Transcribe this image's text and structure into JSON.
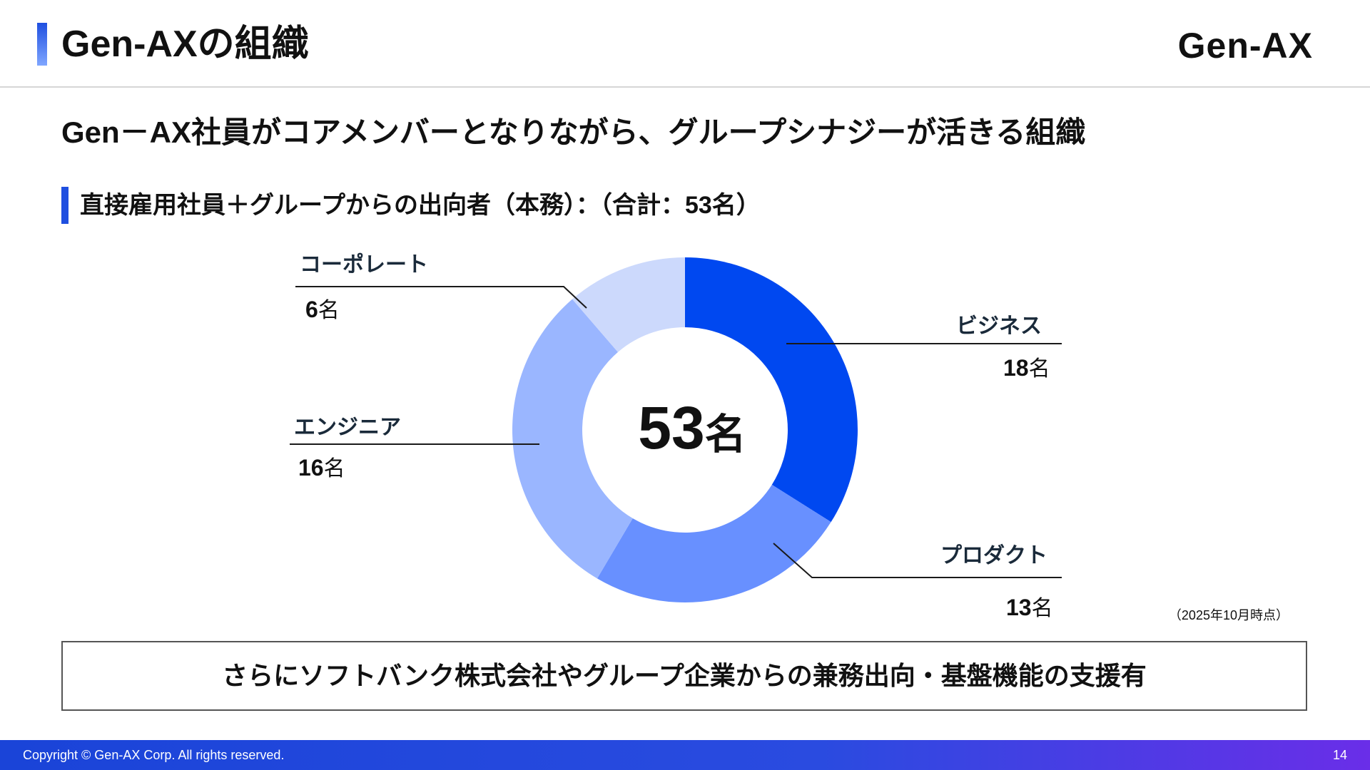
{
  "header": {
    "title": "Gen-AXの組織",
    "logo_text": "Gen-AX"
  },
  "headline": "Gen－AX社員がコアメンバーとなりながら、グループシナジーが活きる組織",
  "subheading": "直接雇用社員＋グループからの出向者（本務）：（合計：53名）",
  "chart_data": {
    "type": "pie",
    "variant": "donut",
    "title": "直接雇用社員＋グループからの出向者（本務）：（合計：53名）",
    "total": 53,
    "total_label": "53",
    "total_unit": "名",
    "unit": "名",
    "segments": [
      {
        "name": "ビジネス",
        "value": 18,
        "value_label": "18",
        "color": "#0048f0"
      },
      {
        "name": "プロダクト",
        "value": 13,
        "value_label": "13",
        "color": "#6890ff"
      },
      {
        "name": "エンジニア",
        "value": 16,
        "value_label": "16",
        "color": "#9ab6ff"
      },
      {
        "name": "コーポレート",
        "value": 6,
        "value_label": "6",
        "color": "#ccd9fc"
      }
    ],
    "label_line_color": "#1a1a1a",
    "start_angle": "12 o'clock",
    "direction": "clockwise"
  },
  "as_of": "（2025年10月時点）",
  "note": "さらにソフトバンク株式会社やグループ企業からの兼務出向・基盤機能の支援有",
  "footer": {
    "copyright": "Copyright © Gen-AX Corp. All rights reserved.",
    "page_number": "14"
  }
}
